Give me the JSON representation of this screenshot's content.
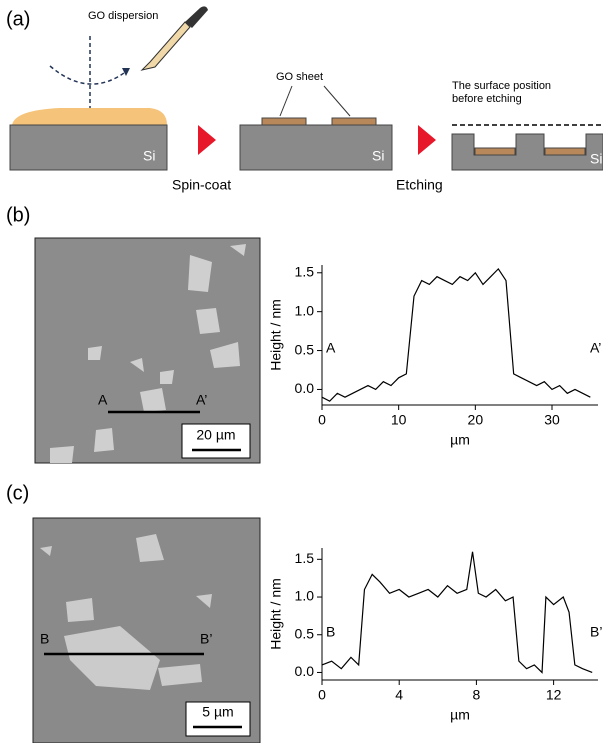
{
  "panels": {
    "a": "(a)",
    "b": "(b)",
    "c": "(c)"
  },
  "schematic": {
    "dropper_label": "GO dispersion",
    "sheet_label": "GO sheet",
    "surface_label": [
      "The surface position",
      "before etching"
    ],
    "substrate": "Si",
    "step1": "Spin-coat",
    "step2": "Etching"
  },
  "images": [
    {
      "scale_bar": "20 µm",
      "line_start": "A",
      "line_end": "A’"
    },
    {
      "scale_bar": "5 µm",
      "line_start": "B",
      "line_end": "B’"
    }
  ],
  "chart_data": [
    {
      "type": "line",
      "x_label": "µm",
      "y_label": "Height / nm",
      "annotations": [
        "A",
        "A’"
      ],
      "x": [
        0,
        1,
        2,
        3,
        4,
        5,
        6,
        7,
        8,
        9,
        10,
        11,
        12,
        13,
        14,
        15,
        16,
        17,
        18,
        19,
        20,
        21,
        22,
        23,
        24,
        25,
        26,
        27,
        28,
        29,
        30,
        31,
        32,
        33,
        34,
        35
      ],
      "series": [
        {
          "color": "#000000",
          "values": [
            -0.1,
            -0.15,
            -0.05,
            -0.1,
            -0.05,
            0.0,
            0.05,
            0.0,
            0.1,
            0.05,
            0.15,
            0.2,
            1.2,
            1.4,
            1.35,
            1.45,
            1.4,
            1.35,
            1.45,
            1.4,
            1.5,
            1.35,
            1.45,
            1.55,
            1.4,
            0.2,
            0.15,
            0.1,
            0.05,
            0.1,
            0.0,
            0.05,
            -0.05,
            0.0,
            -0.05,
            -0.1
          ]
        }
      ],
      "xlim": [
        0,
        36
      ],
      "xticks": [
        0,
        10,
        20,
        30
      ],
      "ylim": [
        -0.2,
        1.6
      ],
      "yticks": [
        {
          "value": 0,
          "label": "0.0"
        },
        0.5,
        {
          "value": 1,
          "label": "1.0"
        },
        1.5
      ]
    },
    {
      "type": "line",
      "x_label": "µm",
      "y_label": "Height / nm",
      "annotations": [
        "B",
        "B’"
      ],
      "x": [
        0,
        0.5,
        1,
        1.5,
        1.9,
        2.2,
        2.6,
        3,
        3.5,
        4,
        4.5,
        5,
        5.5,
        6,
        6.5,
        7,
        7.5,
        7.8,
        8.1,
        8.5,
        9,
        9.5,
        9.9,
        10.2,
        10.6,
        11,
        11.4,
        11.6,
        12,
        12.5,
        12.8,
        13.1,
        13.5,
        14
      ],
      "series": [
        {
          "color": "#000000",
          "values": [
            0.1,
            0.15,
            0.05,
            0.2,
            0.1,
            1.1,
            1.3,
            1.2,
            1.05,
            1.1,
            1.0,
            1.05,
            1.1,
            1.0,
            1.15,
            1.05,
            1.1,
            1.6,
            1.05,
            1.0,
            1.1,
            0.95,
            1.0,
            0.15,
            0.05,
            0.1,
            0.0,
            1.0,
            0.9,
            1.0,
            0.8,
            0.1,
            0.05,
            0.0
          ]
        }
      ],
      "xlim": [
        0,
        14.3
      ],
      "xticks": [
        0,
        4,
        8,
        12
      ],
      "ylim": [
        -0.1,
        1.65
      ],
      "yticks": [
        {
          "value": 0,
          "label": "0.0"
        },
        0.5,
        {
          "value": 1,
          "label": "1.0"
        },
        1.5
      ]
    }
  ]
}
